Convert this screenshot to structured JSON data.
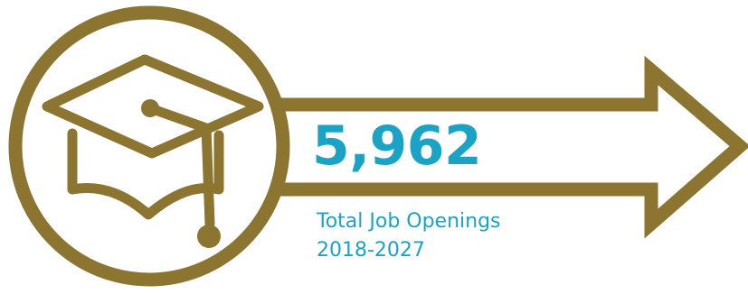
{
  "stat": {
    "value": "5,962",
    "label_line1": "Total Job Openings",
    "label_line2": "2018-2027"
  },
  "icons": {
    "main": "graduation-cap-icon",
    "arrow": "arrow-right-icon"
  },
  "colors": {
    "outline": "#8b7531",
    "accent": "#1aa3c4",
    "background": "#ffffff"
  }
}
